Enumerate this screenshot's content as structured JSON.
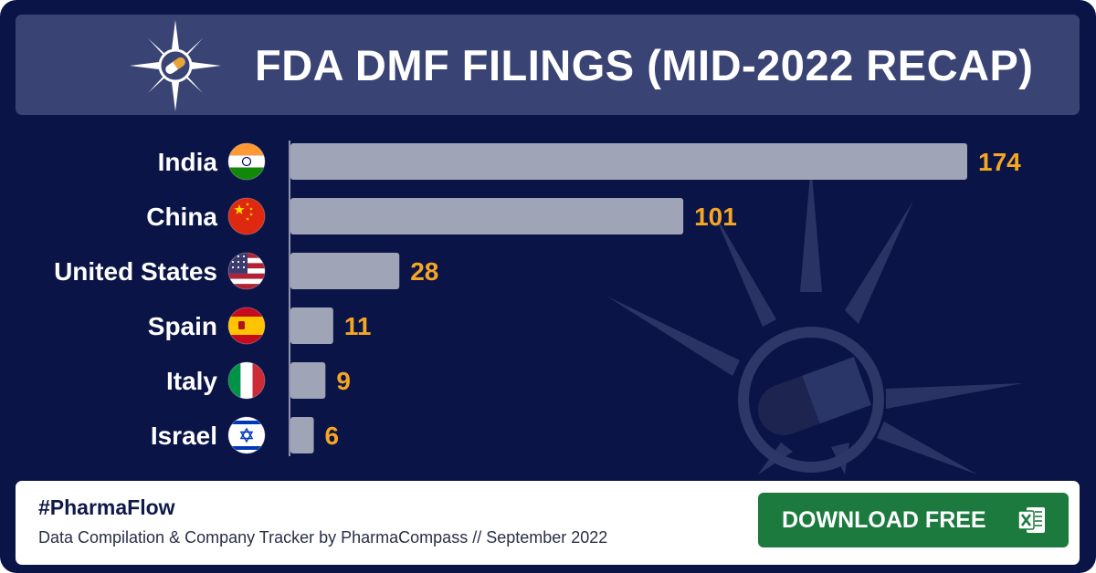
{
  "header": {
    "title": "FDA DMF FILINGS (MID-2022 RECAP)",
    "logo_icon": "compass-capsule-icon"
  },
  "colors": {
    "background": "#0b1447",
    "header_band": "#3a4474",
    "bar": "#a0a4b7",
    "value_label": "#f5a623",
    "country_label": "#ffffff",
    "download_button": "#1c7a3f"
  },
  "chart_data": {
    "type": "bar",
    "orientation": "horizontal",
    "categories": [
      "India",
      "China",
      "United States",
      "Spain",
      "Italy",
      "Israel"
    ],
    "values": [
      174,
      101,
      28,
      11,
      9,
      6
    ],
    "flags": [
      "india-flag-icon",
      "china-flag-icon",
      "us-flag-icon",
      "spain-flag-icon",
      "italy-flag-icon",
      "israel-flag-icon"
    ],
    "title": "FDA DMF FILINGS (MID-2022 RECAP)",
    "xlabel": "",
    "ylabel": "",
    "xlim": [
      0,
      174
    ],
    "grid": false,
    "legend": "none",
    "data_labels": true
  },
  "footer": {
    "hashtag": "#PharmaFlow",
    "byline": "Data Compilation & Company Tracker by PharmaCompass // September 2022",
    "download_label": "DOWNLOAD FREE",
    "download_icon": "excel-icon"
  }
}
